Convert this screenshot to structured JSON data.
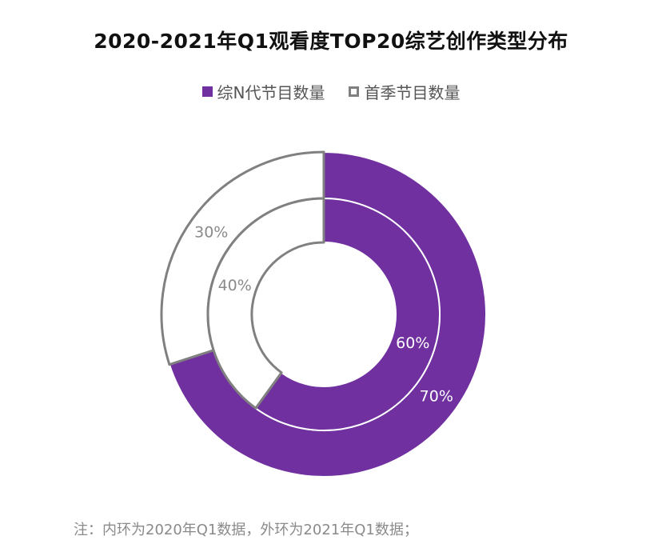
{
  "title": "2020-2021年Q1观看度TOP20综艺创作类型分布",
  "legend": [
    {
      "label": "综N代节目数量",
      "style": "filled"
    },
    {
      "label": "首季节目数量",
      "style": "hollow"
    }
  ],
  "note": "注：内环为2020年Q1数据，外环为2021年Q1数据；",
  "colors": {
    "series_a_fill": "#7030A0",
    "series_b_fill": "#ffffff",
    "series_b_stroke": "#808080",
    "label_on_dark": "#ffffff",
    "label_on_light": "#8a8a8a"
  },
  "chart_data": {
    "type": "pie",
    "variant": "donut-nested",
    "title": "2020-2021年Q1观看度TOP20综艺创作类型分布",
    "series_names": [
      "综N代节目数量",
      "首季节目数量"
    ],
    "rings": [
      {
        "name": "2020年Q1",
        "position": "inner",
        "values": [
          60,
          40
        ],
        "labels": [
          "60%",
          "40%"
        ]
      },
      {
        "name": "2021年Q1",
        "position": "outer",
        "values": [
          70,
          30
        ],
        "labels": [
          "70%",
          "30%"
        ]
      }
    ]
  }
}
